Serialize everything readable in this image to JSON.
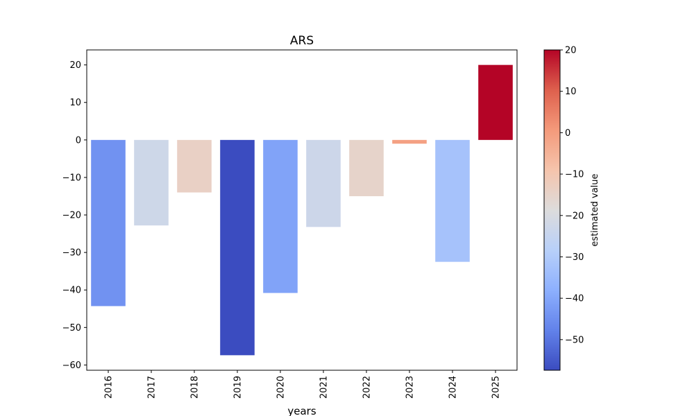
{
  "chart_data": {
    "type": "bar",
    "title": "ARS",
    "xlabel": "years",
    "ylabel": "",
    "categories": [
      "2016",
      "2017",
      "2018",
      "2019",
      "2020",
      "2021",
      "2022",
      "2023",
      "2024",
      "2025"
    ],
    "values": [
      -44.3,
      -22.8,
      -14.0,
      -57.4,
      -40.8,
      -23.2,
      -15.0,
      -1.0,
      -32.5,
      20.0
    ],
    "ylim": [
      -61.4,
      24.0
    ],
    "yticks": [
      20,
      10,
      0,
      -10,
      -20,
      -30,
      -40,
      -50,
      -60
    ],
    "grid": false,
    "colormap": "coolwarm",
    "colorbar": {
      "label": "estimated value",
      "range": [
        -57.4,
        20.0
      ],
      "ticks": [
        20,
        10,
        0,
        -10,
        -20,
        -30,
        -40,
        -50
      ],
      "gradient_colors": [
        "#3b4cc0",
        "#6282ea",
        "#8db0fe",
        "#b8d0f9",
        "#dddcdc",
        "#f5c4ac",
        "#f49a7b",
        "#de604d",
        "#b40426"
      ]
    }
  }
}
